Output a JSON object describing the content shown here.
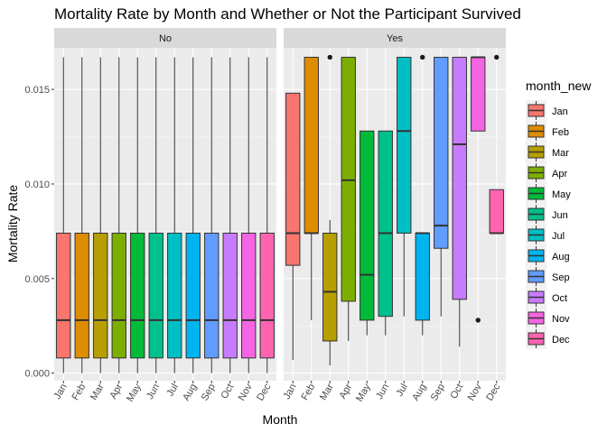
{
  "chart_data": {
    "type": "boxplot",
    "title": "Mortality Rate by Month and Whether or Not the Participant Survived",
    "xlabel": "Month",
    "ylabel": "Mortality Rate",
    "ylim": [
      -0.0004,
      0.0172
    ],
    "yticks": [
      0.0,
      0.005,
      0.01,
      0.015
    ],
    "ytick_labels": [
      "0.000",
      "0.005",
      "0.010",
      "0.015"
    ],
    "categories": [
      "Jan",
      "Feb",
      "Mar",
      "Apr",
      "May",
      "Jun",
      "Jul",
      "Aug",
      "Sep",
      "Oct",
      "Nov",
      "Dec"
    ],
    "legend": {
      "title": "month_new",
      "position": "right",
      "items": [
        {
          "label": "Jan",
          "color": "#F8766D"
        },
        {
          "label": "Feb",
          "color": "#DE8C00"
        },
        {
          "label": "Mar",
          "color": "#B79F00"
        },
        {
          "label": "Apr",
          "color": "#7CAE00"
        },
        {
          "label": "May",
          "color": "#00BA38"
        },
        {
          "label": "Jun",
          "color": "#00C08B"
        },
        {
          "label": "Jul",
          "color": "#00BFC4"
        },
        {
          "label": "Aug",
          "color": "#00B4F0"
        },
        {
          "label": "Sep",
          "color": "#619CFF"
        },
        {
          "label": "Oct",
          "color": "#C77CFF"
        },
        {
          "label": "Nov",
          "color": "#F564E3"
        },
        {
          "label": "Dec",
          "color": "#FF64B0"
        }
      ]
    },
    "grid": true,
    "facets": [
      {
        "label": "No",
        "boxes": [
          {
            "month": "Jan",
            "lower": 0.0,
            "q1": 0.0008,
            "median": 0.0028,
            "q3": 0.0074,
            "upper": 0.0167,
            "outliers": []
          },
          {
            "month": "Feb",
            "lower": 0.0,
            "q1": 0.0008,
            "median": 0.0028,
            "q3": 0.0074,
            "upper": 0.0167,
            "outliers": []
          },
          {
            "month": "Mar",
            "lower": 0.0,
            "q1": 0.0008,
            "median": 0.0028,
            "q3": 0.0074,
            "upper": 0.0167,
            "outliers": []
          },
          {
            "month": "Apr",
            "lower": 0.0,
            "q1": 0.0008,
            "median": 0.0028,
            "q3": 0.0074,
            "upper": 0.0167,
            "outliers": []
          },
          {
            "month": "May",
            "lower": 0.0,
            "q1": 0.0008,
            "median": 0.0028,
            "q3": 0.0074,
            "upper": 0.0167,
            "outliers": []
          },
          {
            "month": "Jun",
            "lower": 0.0,
            "q1": 0.0008,
            "median": 0.0028,
            "q3": 0.0074,
            "upper": 0.0167,
            "outliers": []
          },
          {
            "month": "Jul",
            "lower": 0.0,
            "q1": 0.0008,
            "median": 0.0028,
            "q3": 0.0074,
            "upper": 0.0167,
            "outliers": []
          },
          {
            "month": "Aug",
            "lower": 0.0,
            "q1": 0.0008,
            "median": 0.0028,
            "q3": 0.0074,
            "upper": 0.0167,
            "outliers": []
          },
          {
            "month": "Sep",
            "lower": 0.0,
            "q1": 0.0008,
            "median": 0.0028,
            "q3": 0.0074,
            "upper": 0.0167,
            "outliers": []
          },
          {
            "month": "Oct",
            "lower": 0.0,
            "q1": 0.0008,
            "median": 0.0028,
            "q3": 0.0074,
            "upper": 0.0167,
            "outliers": []
          },
          {
            "month": "Nov",
            "lower": 0.0,
            "q1": 0.0008,
            "median": 0.0028,
            "q3": 0.0074,
            "upper": 0.0167,
            "outliers": []
          },
          {
            "month": "Dec",
            "lower": 0.0,
            "q1": 0.0008,
            "median": 0.0028,
            "q3": 0.0074,
            "upper": 0.0167,
            "outliers": []
          }
        ]
      },
      {
        "label": "Yes",
        "boxes": [
          {
            "month": "Jan",
            "lower": 0.0007,
            "q1": 0.0057,
            "median": 0.0074,
            "q3": 0.0148,
            "upper": 0.0148,
            "outliers": []
          },
          {
            "month": "Feb",
            "lower": 0.0028,
            "q1": 0.0074,
            "median": 0.0074,
            "q3": 0.0167,
            "upper": 0.0167,
            "outliers": []
          },
          {
            "month": "Mar",
            "lower": 0.0004,
            "q1": 0.0017,
            "median": 0.0043,
            "q3": 0.0074,
            "upper": 0.0081,
            "outliers": [
              0.0167
            ]
          },
          {
            "month": "Apr",
            "lower": 0.0017,
            "q1": 0.0038,
            "median": 0.0102,
            "q3": 0.0167,
            "upper": 0.0167,
            "outliers": []
          },
          {
            "month": "May",
            "lower": 0.002,
            "q1": 0.0028,
            "median": 0.0052,
            "q3": 0.0128,
            "upper": 0.0128,
            "outliers": []
          },
          {
            "month": "Jun",
            "lower": 0.002,
            "q1": 0.003,
            "median": 0.0074,
            "q3": 0.0128,
            "upper": 0.0128,
            "outliers": []
          },
          {
            "month": "Jul",
            "lower": 0.003,
            "q1": 0.0074,
            "median": 0.0128,
            "q3": 0.0167,
            "upper": 0.0167,
            "outliers": []
          },
          {
            "month": "Aug",
            "lower": 0.002,
            "q1": 0.0028,
            "median": 0.0074,
            "q3": 0.0074,
            "upper": 0.0074,
            "outliers": [
              0.0167
            ]
          },
          {
            "month": "Sep",
            "lower": 0.003,
            "q1": 0.0066,
            "median": 0.0078,
            "q3": 0.0167,
            "upper": 0.0167,
            "outliers": []
          },
          {
            "month": "Oct",
            "lower": 0.0014,
            "q1": 0.0039,
            "median": 0.0121,
            "q3": 0.0167,
            "upper": 0.0167,
            "outliers": []
          },
          {
            "month": "Nov",
            "lower": 0.0128,
            "q1": 0.0128,
            "median": 0.0167,
            "q3": 0.0167,
            "upper": 0.0167,
            "outliers": [
              0.0028
            ]
          },
          {
            "month": "Dec",
            "lower": 0.0074,
            "q1": 0.0074,
            "median": 0.0074,
            "q3": 0.0097,
            "upper": 0.0097,
            "outliers": [
              0.0167
            ]
          }
        ]
      }
    ]
  }
}
